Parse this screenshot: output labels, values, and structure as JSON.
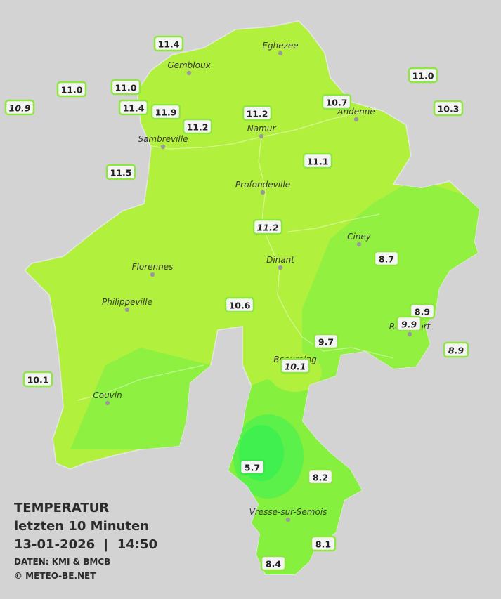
{
  "title": {
    "lines": [
      "TEMPERATUR",
      "letzten 10 Minuten",
      "13-01-2026  |  14:50"
    ]
  },
  "credits": {
    "source": "DATEN: KMI & BMCB",
    "copyright": "© METEO-BE.NET"
  },
  "cities": [
    "Eghezee",
    "Gembloux",
    "Andenne",
    "Namur",
    "Sambreville",
    "Profondeville",
    "Ciney",
    "Florennes",
    "Dinant",
    "Philippeville",
    "Rochefort",
    "Beauraing",
    "Couvin",
    "Vresse-sur-Semois"
  ],
  "stations": [
    {
      "label": "11.4",
      "italic": false
    },
    {
      "label": "11.0",
      "italic": false
    },
    {
      "label": "10.9",
      "italic": true
    },
    {
      "label": "11.0",
      "italic": false
    },
    {
      "label": "11.4",
      "italic": false
    },
    {
      "label": "11.9",
      "italic": false
    },
    {
      "label": "11.2",
      "italic": false
    },
    {
      "label": "11.2",
      "italic": false
    },
    {
      "label": "10.7",
      "italic": false
    },
    {
      "label": "11.0",
      "italic": false
    },
    {
      "label": "10.3",
      "italic": false
    },
    {
      "label": "11.1",
      "italic": false
    },
    {
      "label": "11.5",
      "italic": false
    },
    {
      "label": "11.2",
      "italic": true
    },
    {
      "label": "8.7",
      "italic": false
    },
    {
      "label": "8.9",
      "italic": false
    },
    {
      "label": "9.9",
      "italic": true
    },
    {
      "label": "8.9",
      "italic": true
    },
    {
      "label": "10.6",
      "italic": false
    },
    {
      "label": "9.7",
      "italic": false
    },
    {
      "label": "10.1",
      "italic": true
    },
    {
      "label": "10.1",
      "italic": false
    },
    {
      "label": "5.7",
      "italic": false
    },
    {
      "label": "8.2",
      "italic": false
    },
    {
      "label": "8.1",
      "italic": false
    },
    {
      "label": "8.4",
      "italic": false
    }
  ]
}
